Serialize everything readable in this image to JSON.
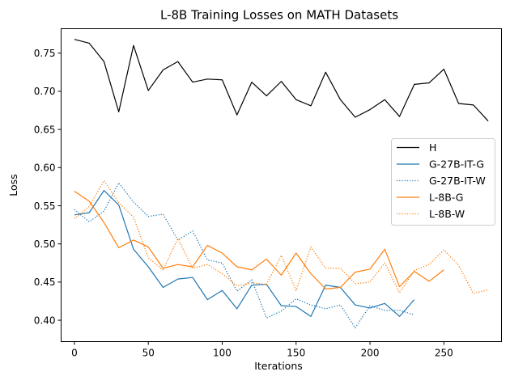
{
  "chart_data": {
    "type": "line",
    "title": "L-8B Training Losses on MATH Datasets",
    "xlabel": "Iterations",
    "ylabel": "Loss",
    "xlim": [
      -9,
      289
    ],
    "ylim": [
      0.372,
      0.782
    ],
    "xticks": [
      0,
      50,
      100,
      150,
      200,
      250
    ],
    "yticks": [
      0.4,
      0.45,
      0.5,
      0.55,
      0.6,
      0.65,
      0.7,
      0.75
    ],
    "ytick_labels": [
      "0.40",
      "0.45",
      "0.50",
      "0.55",
      "0.60",
      "0.65",
      "0.70",
      "0.75"
    ],
    "grid": false,
    "legend_position": "center-right",
    "series": [
      {
        "name": "H",
        "color": "#000000",
        "style": "solid",
        "x": [
          0,
          10,
          20,
          30,
          40,
          50,
          60,
          70,
          80,
          90,
          100,
          110,
          120,
          130,
          140,
          150,
          160,
          170,
          180,
          190,
          200,
          210,
          220,
          230,
          240,
          250,
          260,
          270,
          280
        ],
        "y": [
          0.768,
          0.763,
          0.739,
          0.673,
          0.76,
          0.701,
          0.728,
          0.739,
          0.712,
          0.716,
          0.715,
          0.669,
          0.712,
          0.694,
          0.713,
          0.689,
          0.681,
          0.725,
          0.689,
          0.666,
          0.676,
          0.689,
          0.667,
          0.709,
          0.711,
          0.729,
          0.684,
          0.682,
          0.661
        ]
      },
      {
        "name": "G-27B-IT-G",
        "color": "#1f77b4",
        "style": "solid",
        "x": [
          0,
          10,
          20,
          30,
          40,
          50,
          60,
          70,
          80,
          90,
          100,
          110,
          120,
          130,
          140,
          150,
          160,
          170,
          180,
          190,
          200,
          210,
          220,
          230
        ],
        "y": [
          0.538,
          0.541,
          0.57,
          0.551,
          0.493,
          0.47,
          0.443,
          0.454,
          0.456,
          0.427,
          0.439,
          0.415,
          0.446,
          0.447,
          0.419,
          0.418,
          0.405,
          0.446,
          0.443,
          0.42,
          0.416,
          0.422,
          0.405,
          0.427
        ]
      },
      {
        "name": "G-27B-IT-W",
        "color": "#1f77b4",
        "style": "dotted",
        "x": [
          0,
          10,
          20,
          30,
          40,
          50,
          60,
          70,
          80,
          90,
          100,
          110,
          120,
          130,
          140,
          150,
          160,
          170,
          180,
          190,
          200,
          210,
          220,
          230
        ],
        "y": [
          0.545,
          0.529,
          0.543,
          0.58,
          0.555,
          0.536,
          0.539,
          0.505,
          0.517,
          0.479,
          0.475,
          0.438,
          0.453,
          0.403,
          0.412,
          0.428,
          0.42,
          0.415,
          0.42,
          0.39,
          0.419,
          0.413,
          0.413,
          0.407
        ]
      },
      {
        "name": "L-8B-G",
        "color": "#ff7f0e",
        "style": "solid",
        "x": [
          0,
          10,
          20,
          30,
          40,
          50,
          60,
          70,
          80,
          90,
          100,
          110,
          120,
          130,
          140,
          150,
          160,
          170,
          180,
          190,
          200,
          210,
          220,
          230,
          240,
          250
        ],
        "y": [
          0.569,
          0.556,
          0.528,
          0.495,
          0.505,
          0.496,
          0.468,
          0.473,
          0.47,
          0.498,
          0.488,
          0.47,
          0.466,
          0.48,
          0.459,
          0.488,
          0.461,
          0.441,
          0.443,
          0.463,
          0.467,
          0.493,
          0.444,
          0.464,
          0.451,
          0.466
        ]
      },
      {
        "name": "L-8B-W",
        "color": "#ff7f0e",
        "style": "dotted",
        "x": [
          0,
          10,
          20,
          30,
          40,
          50,
          60,
          70,
          80,
          90,
          100,
          110,
          120,
          130,
          140,
          150,
          160,
          170,
          180,
          190,
          200,
          210,
          220,
          230,
          240,
          250,
          260,
          270,
          280
        ],
        "y": [
          0.533,
          0.549,
          0.583,
          0.554,
          0.535,
          0.482,
          0.466,
          0.507,
          0.468,
          0.473,
          0.461,
          0.445,
          0.449,
          0.447,
          0.485,
          0.439,
          0.496,
          0.468,
          0.468,
          0.448,
          0.45,
          0.475,
          0.436,
          0.465,
          0.473,
          0.492,
          0.472,
          0.435,
          0.44
        ]
      }
    ]
  }
}
